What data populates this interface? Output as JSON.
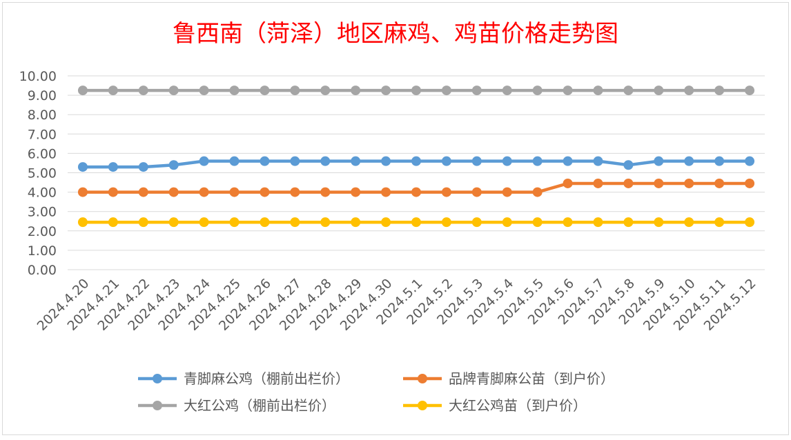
{
  "chart_data": {
    "type": "line",
    "title": "鲁西南（菏泽）地区麻鸡、鸡苗价格走势图",
    "xlabel": "",
    "ylabel": "",
    "ylim": [
      0,
      10
    ],
    "yticks": [
      "10.00",
      "9.00",
      "8.00",
      "7.00",
      "6.00",
      "5.00",
      "4.00",
      "3.00",
      "2.00",
      "1.00",
      "0.00"
    ],
    "grid": true,
    "legend_position": "bottom",
    "categories": [
      "2024.4.20",
      "2024.4.21",
      "2024.4.22",
      "2024.4.23",
      "2024.4.24",
      "2024.4.25",
      "2024.4.26",
      "2024.4.27",
      "2024.4.28",
      "2024.4.29",
      "2024.4.30",
      "2024.5.1",
      "2024.5.2",
      "2024.5.3",
      "2024.5.4",
      "2024.5.5",
      "2024.5.6",
      "2024.5.7",
      "2024.5.8",
      "2024.5.9",
      "2024.5.10",
      "2024.5.11",
      "2024.5.12"
    ],
    "series": [
      {
        "name": "青脚麻公鸡（棚前出栏价）",
        "color": "#5B9BD5",
        "values": [
          5.3,
          5.3,
          5.3,
          5.4,
          5.6,
          5.6,
          5.6,
          5.6,
          5.6,
          5.6,
          5.6,
          5.6,
          5.6,
          5.6,
          5.6,
          5.6,
          5.6,
          5.6,
          5.4,
          5.6,
          5.6,
          5.6,
          5.6
        ]
      },
      {
        "name": "品牌青脚麻公苗（到户价）",
        "color": "#ED7D31",
        "values": [
          4.0,
          4.0,
          4.0,
          4.0,
          4.0,
          4.0,
          4.0,
          4.0,
          4.0,
          4.0,
          4.0,
          4.0,
          4.0,
          4.0,
          4.0,
          4.0,
          4.45,
          4.45,
          4.45,
          4.45,
          4.45,
          4.45,
          4.45
        ]
      },
      {
        "name": "大红公鸡（棚前出栏价）",
        "color": "#A5A5A5",
        "values": [
          9.25,
          9.25,
          9.25,
          9.25,
          9.25,
          9.25,
          9.25,
          9.25,
          9.25,
          9.25,
          9.25,
          9.25,
          9.25,
          9.25,
          9.25,
          9.25,
          9.25,
          9.25,
          9.25,
          9.25,
          9.25,
          9.25,
          9.25
        ]
      },
      {
        "name": "大红公鸡苗（到户价）",
        "color": "#FFC000",
        "values": [
          2.45,
          2.45,
          2.45,
          2.45,
          2.45,
          2.45,
          2.45,
          2.45,
          2.45,
          2.45,
          2.45,
          2.45,
          2.45,
          2.45,
          2.45,
          2.45,
          2.45,
          2.45,
          2.45,
          2.45,
          2.45,
          2.45,
          2.45
        ]
      }
    ]
  },
  "colors": {
    "title": "#FF0000",
    "grid": "#D9D9D9",
    "axis_text": "#595959",
    "border": "#D9D9D9"
  }
}
